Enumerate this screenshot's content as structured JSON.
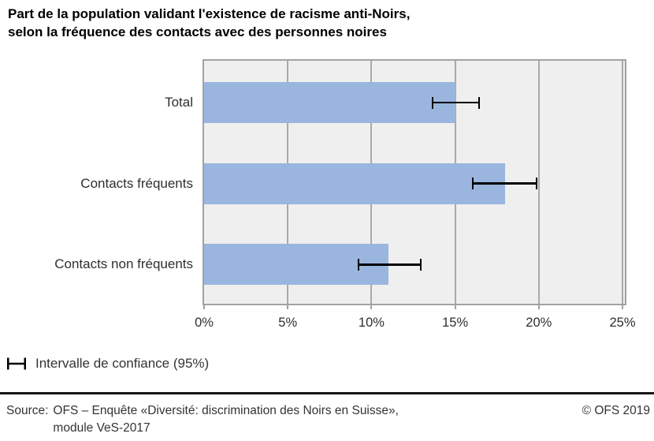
{
  "title": {
    "line1": "Part de la population validant l'existence de racisme anti-Noirs,",
    "line2": "selon la fréquence des contacts avec des personnes noires"
  },
  "chart_data": {
    "type": "bar",
    "orientation": "horizontal",
    "title": "Part de la population validant l'existence de racisme anti-Noirs, selon la fréquence des contacts avec des personnes noires",
    "categories": [
      "Total",
      "Contacts fréquents",
      "Contacts non fréquents"
    ],
    "values": [
      15,
      18,
      11
    ],
    "unit": "%",
    "confidence_intervals_95": [
      [
        13.6,
        16.5
      ],
      [
        16.0,
        19.9
      ],
      [
        9.2,
        13.0
      ]
    ],
    "x_tick_labels": [
      "0%",
      "5%",
      "10%",
      "15%",
      "20%",
      "25%"
    ],
    "x_tick_values": [
      0,
      5,
      10,
      15,
      20,
      25
    ],
    "xlim": [
      0,
      25.14
    ],
    "grid": true,
    "legend_position": "bottom-left",
    "legend_entries": [
      "Intervalle de confiance (95%)"
    ]
  },
  "legend": {
    "label": "Intervalle de confiance (95%)"
  },
  "footer": {
    "source_label": "Source:",
    "source_line1": "OFS – Enquête «Diversité: discrimination des Noirs en Suisse»,",
    "source_line2": "module VeS-2017",
    "copyright": "© OFS 2019"
  },
  "colors": {
    "bar": "#9ab6de",
    "plot_background": "#efefef",
    "grid_line": "#a9a9a9",
    "plot_border": "#a2a2a2",
    "error_bar": "#000000"
  }
}
